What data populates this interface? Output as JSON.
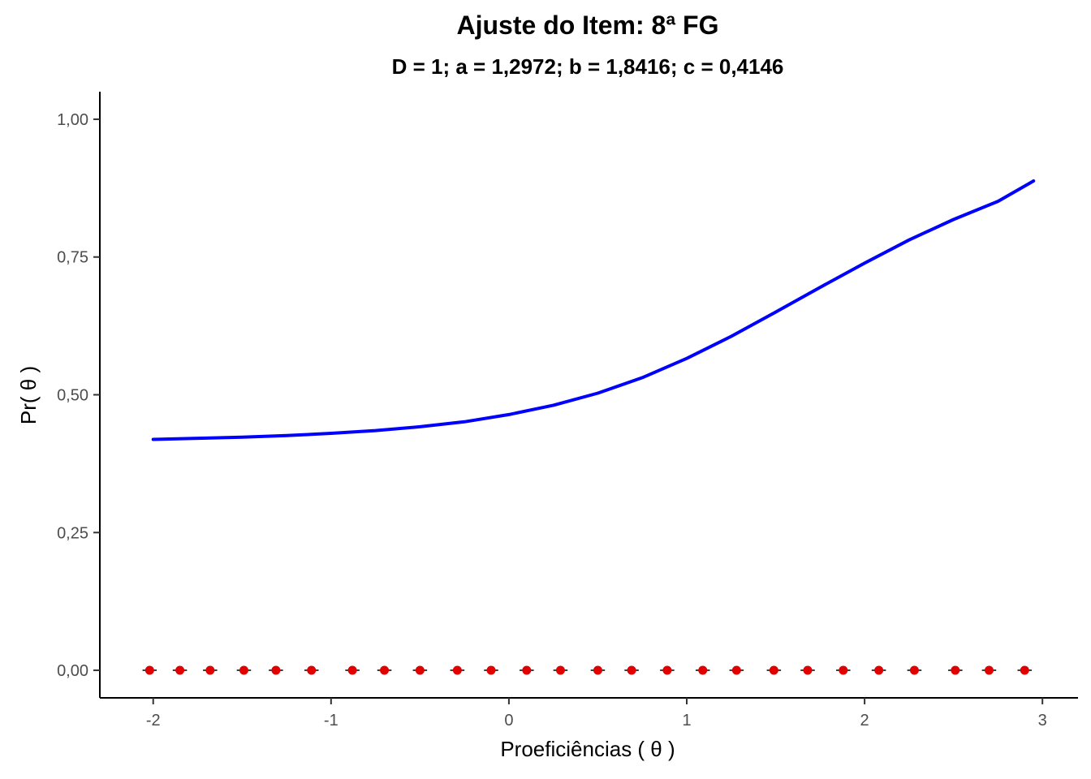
{
  "chart_data": {
    "type": "line",
    "title": "Ajuste do Item: 8ª FG",
    "subtitle": "D = 1; a = 1,2972; b = 1,8416; c = 0,4146",
    "xlabel": "Proeficiências ( θ )",
    "ylabel": "Pr( θ )",
    "xlim": [
      -2.3,
      3.2
    ],
    "ylim": [
      -0.05,
      1.05
    ],
    "x_ticks": [
      -2,
      -1,
      0,
      1,
      2,
      3
    ],
    "x_tick_labels": [
      "-2",
      "-1",
      "0",
      "1",
      "2",
      "3"
    ],
    "y_ticks": [
      0,
      0.25,
      0.5,
      0.75,
      1
    ],
    "y_tick_labels": [
      "0,00",
      "0,25",
      "0,50",
      "0,75",
      "1,00"
    ],
    "grid": false,
    "colors": {
      "curve": "#0000ff",
      "points": "#e00000",
      "error_bars": "#000000"
    },
    "series": [
      {
        "type": "line",
        "x": [
          -2.0,
          -1.75,
          -1.5,
          -1.25,
          -1.0,
          -0.75,
          -0.5,
          -0.25,
          0.0,
          0.25,
          0.5,
          0.75,
          1.0,
          1.25,
          1.5,
          1.75,
          2.0,
          2.25,
          2.5,
          2.75,
          2.95
        ],
        "y": [
          0.419,
          0.421,
          0.423,
          0.426,
          0.43,
          0.435,
          0.442,
          0.451,
          0.464,
          0.481,
          0.503,
          0.531,
          0.566,
          0.606,
          0.65,
          0.695,
          0.739,
          0.781,
          0.818,
          0.851,
          0.888
        ]
      },
      {
        "type": "scatter",
        "x": [
          -2.02,
          -1.85,
          -1.68,
          -1.49,
          -1.31,
          -1.11,
          -0.88,
          -0.7,
          -0.5,
          -0.29,
          -0.1,
          0.1,
          0.29,
          0.5,
          0.69,
          0.89,
          1.09,
          1.28,
          1.49,
          1.68,
          1.88,
          2.08,
          2.28,
          2.51,
          2.7,
          2.9
        ],
        "y": [
          0,
          0,
          0,
          0,
          0,
          0,
          0,
          0,
          0,
          0,
          0,
          0,
          0,
          0,
          0,
          0,
          0,
          0,
          0,
          0,
          0,
          0,
          0,
          0,
          0,
          0
        ],
        "error_halfwidth": 0.04
      }
    ]
  }
}
